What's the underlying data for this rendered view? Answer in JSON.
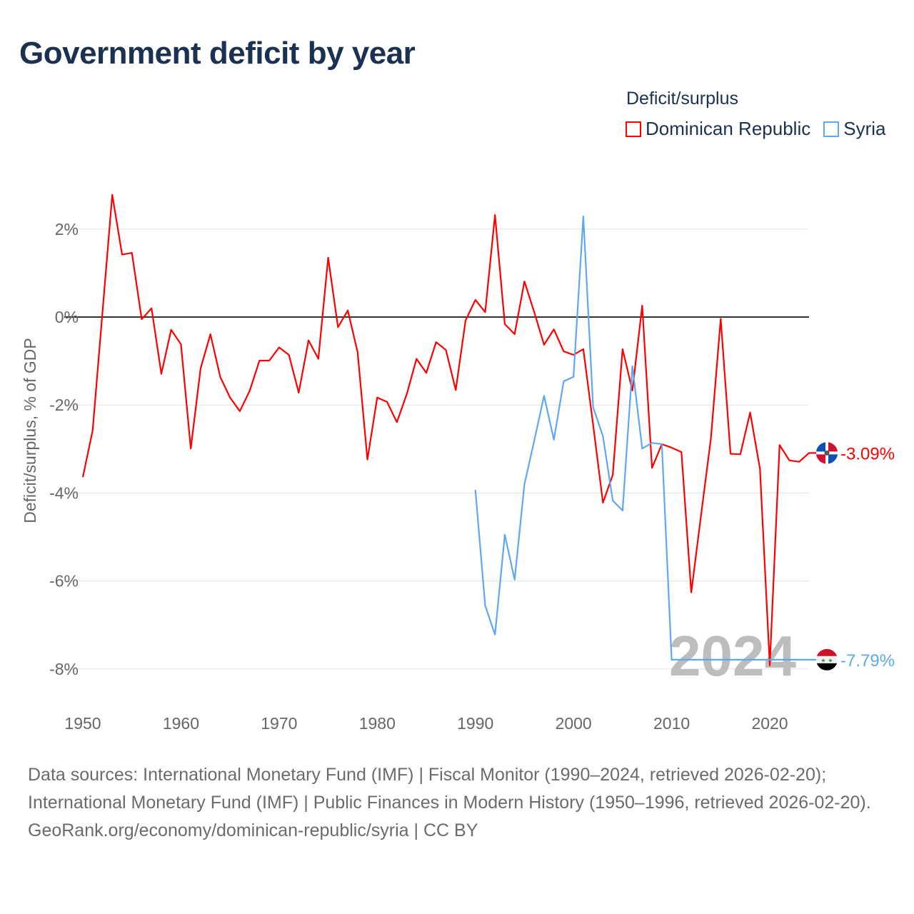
{
  "title": "Government deficit by year",
  "legend": {
    "title": "Deficit/surplus",
    "items": [
      {
        "label": "Dominican Republic",
        "color": "#ff0000"
      },
      {
        "label": "Syria",
        "color": "#5fa8ee"
      }
    ]
  },
  "watermark_year": "2024",
  "chart_data": {
    "type": "line",
    "title": "Government deficit by year",
    "xlabel": "",
    "ylabel": "Deficit/surplus, % of GDP",
    "xlim": [
      1950,
      2024
    ],
    "ylim": [
      -8.5,
      3
    ],
    "x_ticks": [
      1950,
      1960,
      1970,
      1980,
      1990,
      2000,
      2010,
      2020
    ],
    "x_tick_labels": [
      "1950",
      "1960",
      "1970",
      "1980",
      "1990",
      "2000",
      "2010",
      "2020"
    ],
    "y_ticks": [
      2,
      0,
      -2,
      -4,
      -6,
      -8
    ],
    "y_tick_labels": [
      "2%",
      "0%",
      "-2%",
      "-4%",
      "-6%",
      "-8%"
    ],
    "grid": true,
    "legend_position": "top-right",
    "series": [
      {
        "name": "Dominican Republic",
        "color": "#ff0000",
        "end_label": "-3.09%",
        "x": [
          1950,
          1951,
          1952,
          1953,
          1954,
          1955,
          1956,
          1957,
          1958,
          1959,
          1960,
          1961,
          1962,
          1963,
          1964,
          1965,
          1966,
          1967,
          1968,
          1969,
          1970,
          1971,
          1972,
          1973,
          1974,
          1975,
          1976,
          1977,
          1978,
          1979,
          1980,
          1981,
          1982,
          1983,
          1984,
          1985,
          1986,
          1987,
          1988,
          1989,
          1990,
          1991,
          1992,
          1993,
          1994,
          1995,
          1996,
          1997,
          1998,
          1999,
          2000,
          2001,
          2002,
          2003,
          2004,
          2005,
          2006,
          2007,
          2008,
          2009,
          2010,
          2011,
          2012,
          2013,
          2014,
          2015,
          2016,
          2017,
          2018,
          2019,
          2020,
          2021,
          2022,
          2023,
          2024
        ],
        "values": [
          -3.64,
          -2.58,
          0.1,
          2.78,
          1.42,
          1.46,
          -0.05,
          0.2,
          -1.29,
          -0.29,
          -0.62,
          -2.99,
          -1.17,
          -0.39,
          -1.36,
          -1.83,
          -2.14,
          -1.68,
          -0.99,
          -0.99,
          -0.69,
          -0.86,
          -1.72,
          -0.53,
          -0.95,
          1.35,
          -0.23,
          0.15,
          -0.8,
          -3.24,
          -1.83,
          -1.93,
          -2.39,
          -1.76,
          -0.95,
          -1.27,
          -0.57,
          -0.75,
          -1.66,
          -0.08,
          0.39,
          0.11,
          2.32,
          -0.16,
          -0.39,
          0.81,
          0.11,
          -0.63,
          -0.28,
          -0.78,
          -0.86,
          -0.73,
          -2.45,
          -4.22,
          -3.59,
          -0.73,
          -1.67,
          0.26,
          -3.43,
          -2.89,
          -2.97,
          -3.07,
          -6.26,
          -4.5,
          -2.76,
          -0.04,
          -3.11,
          -3.12,
          -2.17,
          -3.45,
          -7.92,
          -2.91,
          -3.26,
          -3.29,
          -3.09
        ]
      },
      {
        "name": "Syria",
        "color": "#5fa8ee",
        "end_label": "-7.79%",
        "x": [
          1990,
          1991,
          1992,
          1993,
          1994,
          1995,
          1996,
          1997,
          1998,
          1999,
          2000,
          2001,
          2002,
          2003,
          2004,
          2005,
          2006,
          2007,
          2008,
          2009,
          2010
        ],
        "values": [
          -3.93,
          -6.56,
          -7.22,
          -4.95,
          -5.97,
          -3.8,
          -2.81,
          -1.79,
          -2.79,
          -1.46,
          -1.36,
          2.29,
          -2.05,
          -2.71,
          -4.17,
          -4.4,
          -1.12,
          -2.99,
          -2.86,
          -2.89,
          -7.79
        ]
      }
    ]
  },
  "footer": {
    "sources": "Data sources: International Monetary Fund (IMF) | Fiscal Monitor (1990–2024, retrieved 2026-02-20); International Monetary Fund (IMF) | Public Finances in Modern History (1950–1996, retrieved 2026-02-20).",
    "link": "GeoRank.org/economy/dominican-republic/syria",
    "license": " | CC BY"
  }
}
